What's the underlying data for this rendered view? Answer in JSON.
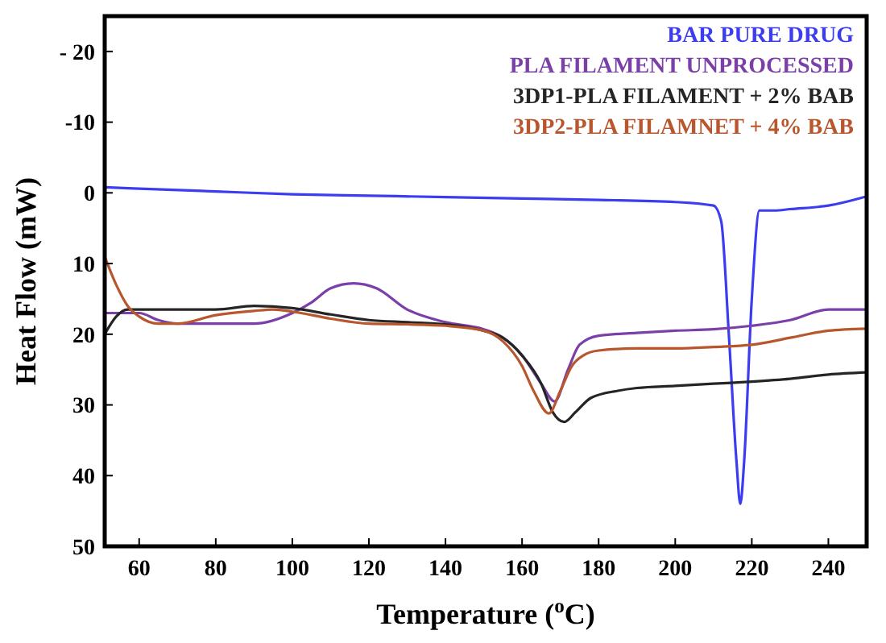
{
  "chart_data": {
    "type": "line",
    "xlabel": "Temperature ($^{o}$C)",
    "ylabel": "Heat Flow (mW)",
    "xlim": [
      51,
      250
    ],
    "xticks": [
      60,
      80,
      100,
      120,
      140,
      160,
      180,
      200,
      220,
      240
    ],
    "ylim": [
      50,
      -25
    ],
    "yticks": [
      {
        "value": -20,
        "label": "- 20"
      },
      -10,
      0,
      10,
      20,
      30,
      40,
      50
    ],
    "grid": false,
    "legend": "top right",
    "marker": "none",
    "line_style": "solid",
    "series": [
      {
        "name": "BAR PURE DRUG",
        "color": "#3c3cf0",
        "x": [
          51,
          60,
          80,
          100,
          120,
          140,
          160,
          180,
          200,
          210,
          212,
          214,
          216,
          217,
          218,
          220,
          222,
          226,
          230,
          240,
          250
        ],
        "values": [
          -0.8,
          -0.6,
          -0.2,
          0.2,
          0.4,
          0.6,
          0.8,
          1,
          1.3,
          1.8,
          4,
          20,
          38,
          44,
          38,
          15,
          2.5,
          2.5,
          2.3,
          1.8,
          0.5
        ]
      },
      {
        "name": "PLA FILAMENT UNPROCESSED",
        "color": "#7b3fa8",
        "x": [
          51,
          55,
          60,
          65,
          70,
          80,
          90,
          100,
          105,
          110,
          116,
          122,
          130,
          140,
          150,
          155,
          160,
          165,
          168.5,
          172,
          175,
          180,
          190,
          200,
          210,
          220,
          230,
          240,
          250
        ],
        "values": [
          17,
          17,
          17,
          18,
          18.5,
          18.5,
          18.5,
          17,
          15.5,
          13.5,
          12.8,
          13.5,
          16.5,
          18.3,
          19.3,
          20.5,
          23,
          27,
          29.5,
          25,
          21.5,
          20.2,
          19.8,
          19.5,
          19.3,
          18.8,
          18,
          16.5,
          16.5
        ]
      },
      {
        "name": "3DP1-PLA FILAMENT + 2% BAB",
        "color": "#252525",
        "x": [
          51,
          54,
          57,
          60,
          70,
          80,
          90,
          100,
          110,
          120,
          130,
          140,
          150,
          155,
          160,
          165,
          168,
          171,
          174,
          178,
          185,
          190,
          200,
          210,
          220,
          230,
          240,
          250
        ],
        "values": [
          20,
          17.5,
          16.5,
          16.5,
          16.5,
          16.5,
          16,
          16.3,
          17.2,
          18,
          18.3,
          18.6,
          19.5,
          20.5,
          23,
          27,
          31,
          32.4,
          31,
          29,
          28,
          27.6,
          27.3,
          27,
          26.7,
          26.3,
          25.7,
          25.4
        ]
      },
      {
        "name": "3DP2-PLA FILAMNET + 4% BAB",
        "color": "#b8562e",
        "x": [
          51,
          54,
          57,
          60,
          65,
          70,
          80,
          90,
          95,
          100,
          110,
          120,
          130,
          140,
          150,
          155,
          160,
          163,
          167,
          170,
          173,
          176,
          180,
          190,
          200,
          210,
          220,
          230,
          240,
          250
        ],
        "values": [
          9,
          13,
          16,
          17.5,
          18.5,
          18.5,
          17.3,
          16.7,
          16.5,
          16.8,
          17.8,
          18.5,
          18.6,
          18.8,
          19.5,
          21,
          24.5,
          28,
          31.2,
          28,
          24.5,
          23,
          22.3,
          22,
          22,
          21.8,
          21.5,
          20.5,
          19.5,
          19.2
        ]
      }
    ]
  }
}
